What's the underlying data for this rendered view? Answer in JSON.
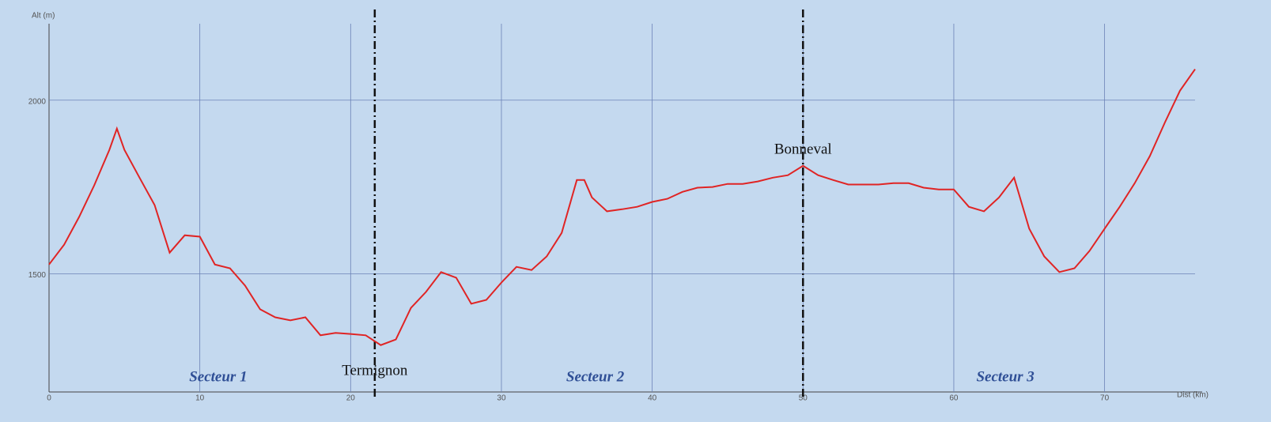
{
  "chart_data": {
    "type": "line",
    "y_label": "Alt (m)",
    "x_label": "Dist (km)",
    "x": [
      0,
      1,
      2,
      3,
      4,
      4.5,
      5,
      6,
      7,
      8,
      9,
      10,
      11,
      12,
      13,
      14,
      15,
      16,
      17,
      18,
      19,
      20,
      21,
      22,
      23,
      24,
      25,
      26,
      27,
      28,
      29,
      30,
      31,
      32,
      33,
      34,
      35,
      35.5,
      36,
      37,
      38,
      39,
      40,
      41,
      42,
      43,
      44,
      45,
      46,
      47,
      48,
      49,
      50,
      51,
      52,
      53,
      54,
      55,
      56,
      57,
      58,
      59,
      60,
      61,
      62,
      63,
      64,
      65,
      66,
      67,
      68,
      69,
      70,
      71,
      72,
      73,
      74,
      75,
      76
    ],
    "series": [
      {
        "name": "Altitude",
        "color": "#e02424",
        "values": [
          1527,
          1584,
          1664,
          1755,
          1857,
          1918,
          1857,
          1777,
          1698,
          1561,
          1611,
          1607,
          1527,
          1516,
          1466,
          1398,
          1375,
          1366,
          1375,
          1323,
          1330,
          1327,
          1323,
          1295,
          1311,
          1402,
          1448,
          1505,
          1489,
          1414,
          1425,
          1475,
          1520,
          1511,
          1550,
          1618,
          1770,
          1770,
          1720,
          1680,
          1686,
          1693,
          1707,
          1716,
          1736,
          1748,
          1750,
          1759,
          1759,
          1766,
          1777,
          1784,
          1811,
          1784,
          1770,
          1757,
          1757,
          1757,
          1761,
          1761,
          1748,
          1743,
          1743,
          1693,
          1680,
          1720,
          1777,
          1630,
          1550,
          1505,
          1516,
          1566,
          1630,
          1693,
          1761,
          1839,
          1936,
          2027,
          2089
        ]
      }
    ],
    "xlim": [
      0,
      76
    ],
    "ylim": [
      1160,
      2220
    ],
    "xticks": [
      0,
      10,
      20,
      30,
      40,
      50,
      60,
      70
    ],
    "yticks": [
      1500,
      2000
    ],
    "grid": true,
    "markers": [
      {
        "x": 21.6,
        "label": "Termignon"
      },
      {
        "x": 50,
        "label": "Bonneval"
      }
    ],
    "sectors": [
      "Secteur 1",
      "Secteur 2",
      "Secteur 3"
    ]
  }
}
